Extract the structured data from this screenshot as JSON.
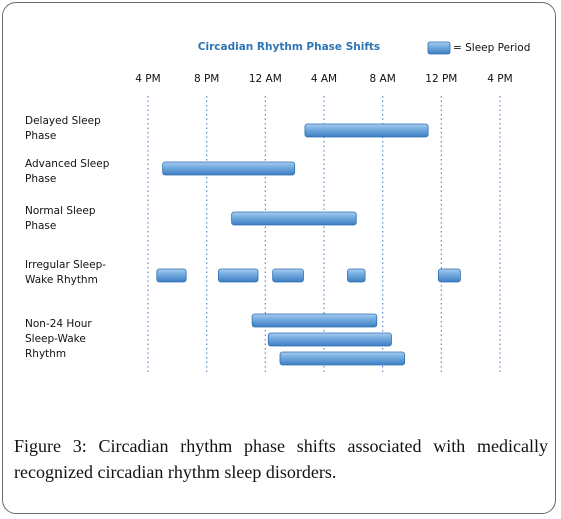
{
  "chart_data": {
    "type": "bar",
    "subtype": "horizontal-range",
    "title": "Circadian Rhythm Phase Shifts",
    "title_color": "#2e75b6",
    "legend": {
      "label": "= Sleep Period",
      "placement": "top-right"
    },
    "bar_color": "#5b9bd5",
    "grid": "vertical-dotted",
    "x_axis_position": "top",
    "x_ticks": [
      "4 PM",
      "8 PM",
      "12 AM",
      "4 AM",
      "8 AM",
      "12 PM",
      "4 PM"
    ],
    "x_tick_hours": [
      0,
      4,
      8,
      12,
      16,
      20,
      24
    ],
    "x_unit_note": "hours after 4 PM",
    "categories": [
      "Delayed Sleep Phase",
      "Advanced Sleep Phase",
      "Normal Sleep Phase",
      "Irregular Sleep-Wake Rhythm",
      "Non-24 Hour Sleep-Wake Rhythm"
    ],
    "category_lines": [
      [
        "Delayed Sleep",
        "Phase"
      ],
      [
        "Advanced Sleep",
        "Phase"
      ],
      [
        "Normal Sleep",
        "Phase"
      ],
      [
        "Irregular Sleep-",
        "Wake Rhythm"
      ],
      [
        "Non-24 Hour",
        "Sleep-Wake",
        "Rhythm"
      ]
    ],
    "series": [
      {
        "category": "Delayed Sleep Phase",
        "periods": [
          [
            10.7,
            19.1
          ]
        ]
      },
      {
        "category": "Advanced Sleep Phase",
        "periods": [
          [
            1.0,
            10.0
          ]
        ]
      },
      {
        "category": "Normal Sleep Phase",
        "periods": [
          [
            5.7,
            14.2
          ]
        ]
      },
      {
        "category": "Irregular Sleep-Wake Rhythm",
        "periods": [
          [
            0.6,
            2.6
          ],
          [
            4.8,
            7.5
          ],
          [
            8.5,
            10.6
          ],
          [
            13.6,
            14.8
          ],
          [
            19.8,
            21.3
          ]
        ]
      },
      {
        "category": "Non-24 Hour Sleep-Wake Rhythm",
        "periods": [
          [
            7.1,
            15.6
          ],
          [
            8.2,
            16.6
          ],
          [
            9.0,
            17.5
          ]
        ]
      }
    ]
  },
  "caption": "Figure 3: Circadian rhythm phase shifts associated with medically recognized circadian rhythm sleep disorders."
}
